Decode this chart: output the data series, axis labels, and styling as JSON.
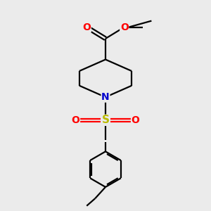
{
  "bg_color": "#ebebeb",
  "bond_color": "#000000",
  "N_color": "#0000cc",
  "O_color": "#ff0000",
  "S_color": "#bbbb00",
  "line_width": 1.6,
  "figsize": [
    3.0,
    3.0
  ],
  "dpi": 100,
  "xlim": [
    0,
    10
  ],
  "ylim": [
    0,
    10
  ]
}
